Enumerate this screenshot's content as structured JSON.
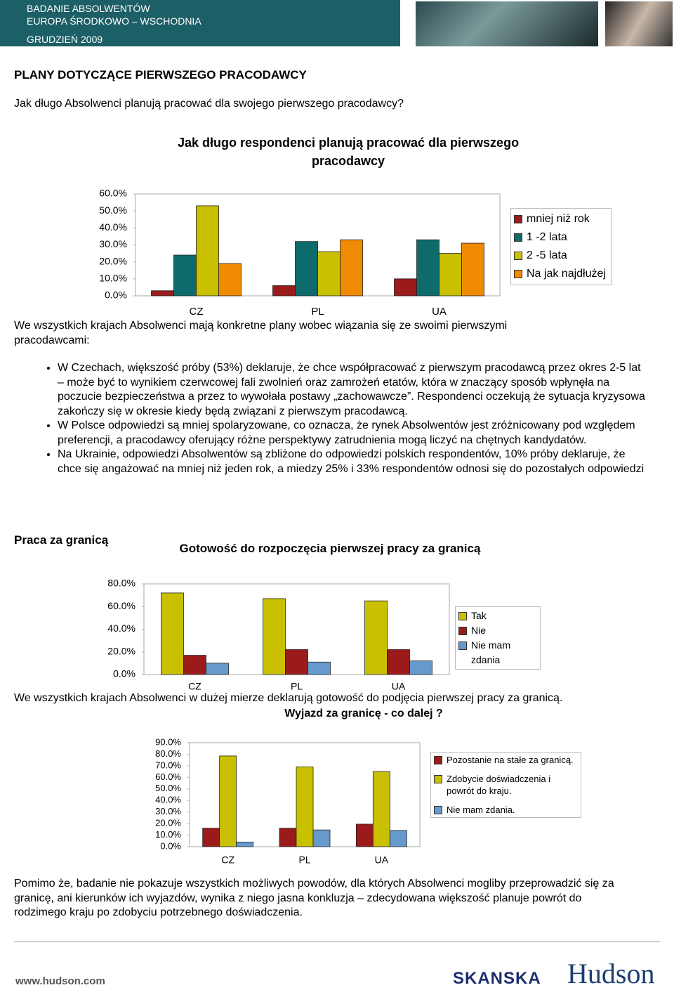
{
  "header": {
    "line1": "BADANIE ABSOLWENTÓW",
    "line2": "EUROPA ŚRODKOWO – WSCHODNIA",
    "date": "GRUDZIEŃ 2009"
  },
  "section1": {
    "heading": "PLANY DOTYCZĄCE PIERWSZEGO PRACODAWCY",
    "question": "Jak długo Absolwenci planują pracować dla swojego pierwszego pracodawcy?",
    "summary": "We wszystkich krajach Absolwenci mają konkretne plany wobec wiązania się ze swoimi pierwszymi pracodawcami:",
    "bullets": [
      "W Czechach, większość próby (53%) deklaruje, że chce współpracować z pierwszym pracodawcą przez okres 2-5 lat – może być to wynikiem czerwcowej fali zwolnień oraz zamrożeń etatów, która w znaczący sposób wpłynęła na poczucie bezpieczeństwa a przez to wywołała postawy „zachowawcze”. Respondenci oczekują że sytuacja kryzysowa zakończy się w okresie kiedy będą związani z pierwszym pracodawcą.",
      "W Polsce odpowiedzi są mniej spolaryzowane, co oznacza, że rynek Absolwentów jest zróżnicowany pod względem preferencji, a pracodawcy oferujący różne perspektywy zatrudnienia mogą liczyć na chętnych kandydatów.",
      "Na Ukrainie, odpowiedzi Absolwentów są zbliżone do odpowiedzi polskich respondentów, 10% próby deklaruje, że chce się angażować na mniej niż jeden rok, a miedzy 25% i 33% respondentów odnosi się do pozostałych odpowiedzi"
    ]
  },
  "section2": {
    "heading": "Praca za granicą",
    "summary": "We wszystkich krajach Absolwenci w dużej mierze deklarują gotowość do podjęcia pierwszej pracy za granicą.",
    "conclusion": "Pomimo że, badanie nie pokazuje wszystkich możliwych powodów, dla których Absolwenci mogliby przeprowadzić się za granicę, ani kierunków ich wyjazdów, wynika z niego jasna konkluzja – zdecydowana większość planuje powrót do rodzimego kraju po zdobyciu potrzebnego doświadczenia."
  },
  "footer": {
    "url": "www.hudson.com",
    "logo1": "SKANSKA",
    "logo2": "Hudson"
  },
  "chart_data": [
    {
      "type": "bar",
      "title": "Jak długo respondenci planują pracować dla pierwszego pracodawcy",
      "categories": [
        "CZ",
        "PL",
        "UA"
      ],
      "series": [
        {
          "name": "mniej niż rok",
          "color": "#9b1b1b",
          "values": [
            3,
            6,
            10
          ]
        },
        {
          "name": "1 -2 lata",
          "color": "#0e6b6b",
          "values": [
            24,
            32,
            33
          ]
        },
        {
          "name": "2 -5 lata",
          "color": "#c8c000",
          "values": [
            53,
            26,
            25
          ]
        },
        {
          "name": "Na jak najdłużej",
          "color": "#f08a00",
          "values": [
            19,
            33,
            31
          ]
        }
      ],
      "ylim": [
        0,
        60
      ],
      "yticks": [
        {
          "value": 0,
          "label": "0.0%"
        },
        {
          "value": 10,
          "label": "10.0%"
        },
        {
          "value": 20,
          "label": "20.0%"
        },
        {
          "value": 30,
          "label": "30.0%"
        },
        {
          "value": 40,
          "label": "40.0%"
        },
        {
          "value": 50,
          "label": "50.0%"
        },
        {
          "value": 60,
          "label": "60.0%"
        }
      ],
      "grid": false,
      "legend": "right"
    },
    {
      "type": "bar",
      "title": "Gotowość do rozpoczęcia pierwszej pracy za granicą",
      "categories": [
        "CZ",
        "PL",
        "UA"
      ],
      "series": [
        {
          "name": "Tak",
          "color": "#c8c000",
          "values": [
            72,
            67,
            65
          ]
        },
        {
          "name": "Nie",
          "color": "#9b1b1b",
          "values": [
            17,
            22,
            22
          ]
        },
        {
          "name": "Nie mam zdania",
          "color": "#6699cc",
          "values": [
            10,
            11,
            12
          ]
        }
      ],
      "ylim": [
        0,
        80
      ],
      "yticks": [
        {
          "value": 0,
          "label": "0.0%"
        },
        {
          "value": 20,
          "label": "20.0%"
        },
        {
          "value": 40,
          "label": "40.0%"
        },
        {
          "value": 60,
          "label": "60.0%"
        },
        {
          "value": 80,
          "label": "80.0%"
        }
      ],
      "grid": false,
      "legend": "right"
    },
    {
      "type": "bar",
      "title": "Wyjazd za granicę - co dalej ?",
      "categories": [
        "CZ",
        "PL",
        "UA"
      ],
      "series": [
        {
          "name": "Pozostanie na stałe za granicą.",
          "color": "#9b1b1b",
          "values": [
            16,
            16,
            19.5
          ]
        },
        {
          "name": "Zdobycie doświadczenia i powrót do kraju.",
          "color": "#c8c000",
          "values": [
            78.5,
            69,
            65
          ]
        },
        {
          "name": "Nie mam zdania.",
          "color": "#6699cc",
          "values": [
            4,
            14.5,
            14
          ]
        }
      ],
      "ylim": [
        0,
        90
      ],
      "yticks": [
        {
          "value": 0,
          "label": "0.0%"
        },
        {
          "value": 10,
          "label": "10.0%"
        },
        {
          "value": 20,
          "label": "20.0%"
        },
        {
          "value": 30,
          "label": "30.0%"
        },
        {
          "value": 40,
          "label": "40.0%"
        },
        {
          "value": 50,
          "label": "50.0%"
        },
        {
          "value": 60,
          "label": "60.0%"
        },
        {
          "value": 70,
          "label": "70.0%"
        },
        {
          "value": 80,
          "label": "80.0%"
        },
        {
          "value": 90,
          "label": "90.0%"
        }
      ],
      "grid": false,
      "legend": "right"
    }
  ]
}
